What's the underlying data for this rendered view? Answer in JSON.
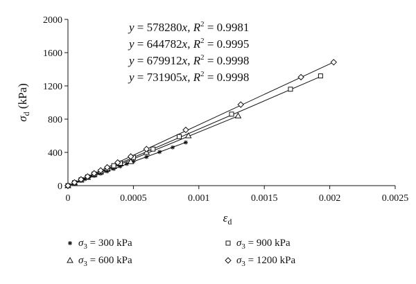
{
  "chart_data": {
    "type": "scatter",
    "xlabel": "ε",
    "xlabel_sub": "d",
    "ylabel": "σ",
    "ylabel_sub": "d",
    "ylabel_unit": "(kPa)",
    "xlim": [
      0,
      0.0025
    ],
    "ylim": [
      0,
      2000
    ],
    "x_ticks": [
      0,
      0.0005,
      0.001,
      0.0015,
      0.002,
      0.0025
    ],
    "x_tick_labels": [
      "0",
      "0.0005",
      "0.001",
      "0.0015",
      "0.002",
      "0.0025"
    ],
    "y_ticks": [
      0,
      400,
      800,
      1200,
      1600,
      2000
    ],
    "y_tick_labels": [
      "0",
      "400",
      "800",
      "1200",
      "1600",
      "2000"
    ],
    "grid": false,
    "legend_position": "bottom",
    "annotations": [
      {
        "slope": "578280",
        "r2": "0.9981"
      },
      {
        "slope": "644782",
        "r2": "0.9995"
      },
      {
        "slope": "679912",
        "r2": "0.9998"
      },
      {
        "slope": "731905",
        "r2": "0.9998"
      }
    ],
    "series": [
      {
        "name": "σ3 = 300 kPa",
        "label_symbol": "σ",
        "label_sub": "3",
        "label_rest": " = 300 kPa",
        "marker": "star",
        "slope": 578280,
        "x": [
          0,
          5e-05,
          0.0001,
          0.00013,
          0.00016,
          0.0002,
          0.00025,
          0.0003,
          0.00035,
          0.0004,
          0.00045,
          0.0005,
          0.0006,
          0.0007,
          0.0008,
          0.0009
        ],
        "y": [
          0,
          30,
          60,
          78,
          96,
          118,
          145,
          172,
          202,
          232,
          262,
          290,
          345,
          405,
          460,
          520
        ]
      },
      {
        "name": "σ3 = 600 kPa",
        "label_symbol": "σ",
        "label_sub": "3",
        "label_rest": " = 600 kPa",
        "marker": "triangle",
        "slope": 644782,
        "x": [
          0,
          5e-05,
          0.0001,
          0.00015,
          0.0002,
          0.00025,
          0.0003,
          0.00035,
          0.0004,
          0.00048,
          0.0006,
          0.00092,
          0.0013
        ],
        "y": [
          0,
          35,
          68,
          100,
          132,
          165,
          198,
          230,
          262,
          290,
          400,
          600,
          840
        ]
      },
      {
        "name": "σ3 = 900 kPa",
        "label_symbol": "σ",
        "label_sub": "3",
        "label_rest": " = 900 kPa",
        "marker": "square",
        "slope": 679912,
        "x": [
          0,
          5e-05,
          0.0001,
          0.00015,
          0.0002,
          0.00025,
          0.0003,
          0.00035,
          0.0004,
          0.0005,
          0.00065,
          0.00085,
          0.00125,
          0.0017,
          0.00193
        ],
        "y": [
          0,
          35,
          70,
          105,
          140,
          170,
          205,
          240,
          270,
          340,
          440,
          590,
          860,
          1160,
          1320
        ]
      },
      {
        "name": "σ3 = 1200 kPa",
        "label_symbol": "σ",
        "label_sub": "3",
        "label_rest": " = 1200 kPa",
        "marker": "diamond",
        "slope": 731905,
        "x": [
          0,
          5e-05,
          0.0001,
          0.00015,
          0.0002,
          0.00025,
          0.0003,
          0.00038,
          0.00048,
          0.0006,
          0.0009,
          0.00132,
          0.00178,
          0.00203
        ],
        "y": [
          0,
          38,
          75,
          110,
          148,
          183,
          220,
          278,
          350,
          440,
          670,
          975,
          1305,
          1485
        ]
      }
    ]
  }
}
